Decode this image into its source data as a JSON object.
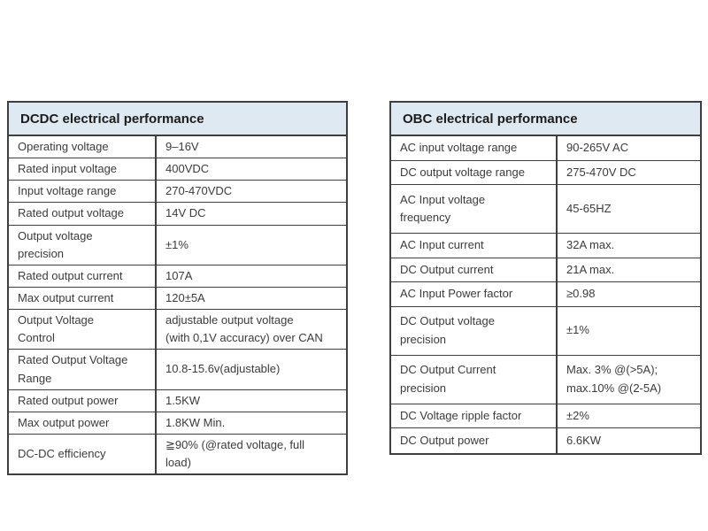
{
  "colors": {
    "page_background": "#ffffff",
    "header_background": "#dfe9f2",
    "border": "#3f3f3f",
    "text": "#3b3b3b"
  },
  "tables": [
    {
      "title": "DCDC electrical performance",
      "rows": [
        {
          "label": "Operating voltage",
          "value": "9–16V"
        },
        {
          "label": "Rated input voltage",
          "value": "400VDC"
        },
        {
          "label": "Input voltage range",
          "value": "270-470VDC"
        },
        {
          "label": "Rated output voltage",
          "value": "14V DC"
        },
        {
          "label": "Output voltage\nprecision",
          "value": "±1%"
        },
        {
          "label": "Rated output current",
          "value": "107A"
        },
        {
          "label": "Max output current",
          "value": "120±5A"
        },
        {
          "label": "Output Voltage\nControl",
          "value": "adjustable output voltage\n(with 0,1V accuracy) over CAN"
        },
        {
          "label": "Rated Output Voltage\nRange",
          "value": "10.8-15.6v(adjustable)"
        },
        {
          "label": "Rated output power",
          "value": "1.5KW"
        },
        {
          "label": "Max output power",
          "value": "1.8KW Min."
        },
        {
          "label": "DC-DC efficiency",
          "value": "≧90% (@rated voltage, full\nload)"
        }
      ]
    },
    {
      "title": "OBC electrical performance",
      "rows": [
        {
          "label": "AC input voltage range",
          "value": "90-265V AC"
        },
        {
          "label": "DC output voltage range",
          "value": "275-470V DC"
        },
        {
          "label": "AC Input voltage\nfrequency",
          "value": "45-65HZ"
        },
        {
          "label": "AC Input current",
          "value": "32A max."
        },
        {
          "label": "DC Output current",
          "value": "21A max."
        },
        {
          "label": "AC Input Power factor",
          "value": "≥0.98"
        },
        {
          "label": "DC Output voltage\nprecision",
          "value": "±1%"
        },
        {
          "label": "DC Output Current\nprecision",
          "value": "Max. 3% @(>5A);\nmax.10% @(2-5A)"
        },
        {
          "label": "DC Voltage ripple factor",
          "value": "±2%"
        },
        {
          "label": "DC Output power",
          "value": "6.6KW"
        }
      ]
    }
  ]
}
